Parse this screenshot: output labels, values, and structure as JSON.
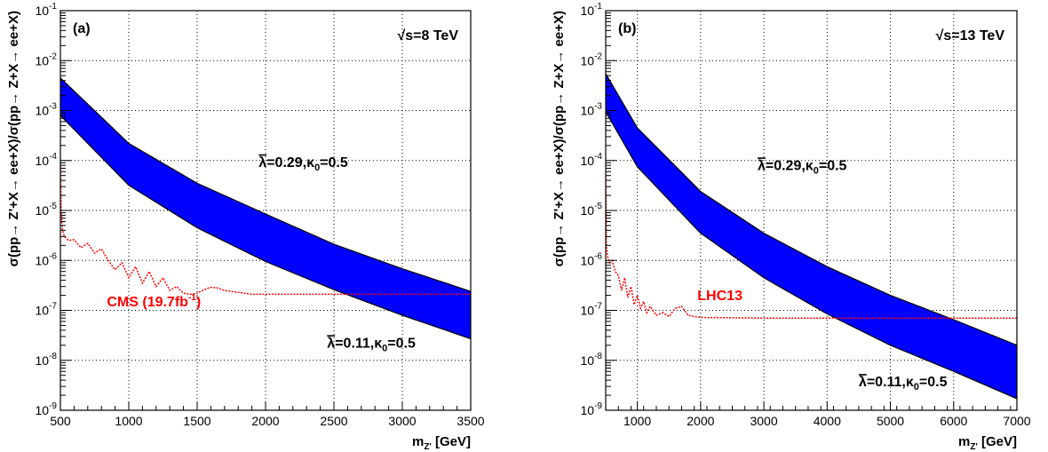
{
  "chart_data": [
    {
      "id": "a",
      "type": "area",
      "panel_label": "(a)",
      "energy_label": "√s=8 TeV",
      "xlabel_main": "m",
      "xlabel_sub": "Z'",
      "xlabel_unit": "[GeV]",
      "ylabel": "σ(pp→ Z'+X→ ee+X)/σ(pp→ Z+X→ ee+X)",
      "xlim": [
        500,
        3500
      ],
      "ylim_log10": [
        -9,
        -1
      ],
      "yscale": "log",
      "grid": true,
      "xticks": [
        500,
        1000,
        1500,
        2000,
        2500,
        3000,
        3500
      ],
      "xtick_labels": [
        "500",
        "1000",
        "1500",
        "2000",
        "2500",
        "3000",
        "3500"
      ],
      "ytick_exponents": [
        -9,
        -8,
        -7,
        -6,
        -5,
        -4,
        -3,
        -2,
        -1
      ],
      "band": {
        "color": "#0000ff",
        "x": [
          500,
          1000,
          1500,
          2000,
          2500,
          3000,
          3500
        ],
        "upper": [
          0.0045,
          0.00022,
          3.5e-05,
          8.5e-06,
          2.1e-06,
          6.8e-07,
          2.4e-07
        ],
        "lower": [
          0.0008,
          3.2e-05,
          4.5e-06,
          9.5e-07,
          2.6e-07,
          8e-08,
          2.7e-08
        ],
        "upper_label": {
          "lambda": "λ",
          "text": "=0.29,κ",
          "sub": "0",
          "tail": "=0.5",
          "x": 1950,
          "y": 7.5e-05
        },
        "lower_label": {
          "lambda": "λ",
          "text": "=0.11,κ",
          "sub": "0",
          "tail": "=0.5",
          "x": 2450,
          "y": 1.8e-08
        }
      },
      "limit": {
        "color": "#ff0000",
        "label_main": "CMS (19.7fb",
        "label_sup": "-1",
        "label_end": ")",
        "label_x": 840,
        "label_y": 1.2e-07,
        "x": [
          500,
          505,
          515,
          530,
          560,
          600,
          650,
          700,
          750,
          800,
          850,
          900,
          950,
          1000,
          1050,
          1100,
          1150,
          1200,
          1250,
          1300,
          1350,
          1400,
          1450,
          1500,
          1550,
          1600,
          1650,
          1700,
          1800,
          1900,
          2000,
          2500,
          3000,
          3500
        ],
        "y": [
          9e-05,
          1.2e-05,
          4e-06,
          3e-06,
          2.5e-06,
          2.6e-06,
          1.8e-06,
          2.2e-06,
          1.4e-06,
          1.7e-06,
          1e-06,
          6.5e-07,
          9e-07,
          4.5e-07,
          7.5e-07,
          3.5e-07,
          6e-07,
          3e-07,
          4.5e-07,
          2.5e-07,
          3e-07,
          2.2e-07,
          2.1e-07,
          2.2e-07,
          2.6e-07,
          2.9e-07,
          2.8e-07,
          2.5e-07,
          2.3e-07,
          2.1e-07,
          2.1e-07,
          2.1e-07,
          2.1e-07,
          2.1e-07
        ]
      }
    },
    {
      "id": "b",
      "type": "area",
      "panel_label": "(b)",
      "energy_label": "√s=13 TeV",
      "xlabel_main": "m",
      "xlabel_sub": "Z'",
      "xlabel_unit": "[GeV]",
      "ylabel": "σ(pp→ Z'+X→ ee+X)/σ(pp→ Z+X→ ee+X)",
      "xlim": [
        500,
        7000
      ],
      "ylim_log10": [
        -9,
        -1
      ],
      "yscale": "log",
      "grid": true,
      "xticks": [
        1000,
        2000,
        3000,
        4000,
        5000,
        6000,
        7000
      ],
      "xtick_labels": [
        "1000",
        "2000",
        "3000",
        "4000",
        "5000",
        "6000",
        "7000"
      ],
      "ytick_exponents": [
        -9,
        -8,
        -7,
        -6,
        -5,
        -4,
        -3,
        -2,
        -1
      ],
      "band": {
        "color": "#0000ff",
        "x": [
          500,
          1000,
          2000,
          3000,
          4000,
          5000,
          6000,
          7000
        ],
        "upper": [
          0.0055,
          0.00045,
          2.4e-05,
          3.5e-06,
          7.5e-07,
          2e-07,
          6.5e-08,
          2e-08
        ],
        "lower": [
          0.00095,
          7.5e-05,
          3.5e-06,
          4.5e-07,
          8.5e-08,
          2e-08,
          6e-09,
          1.7e-09
        ],
        "upper_label": {
          "lambda": "λ",
          "text": "=0.29,κ",
          "sub": "0",
          "tail": "=0.5",
          "x": 2900,
          "y": 6.5e-05
        },
        "lower_label": {
          "lambda": "λ",
          "text": "=0.11,κ",
          "sub": "0",
          "tail": "=0.5",
          "x": 4500,
          "y": 3e-09
        }
      },
      "limit": {
        "color": "#ff0000",
        "label_main": "LHC13",
        "label_sup": "",
        "label_end": "",
        "label_x": 1950,
        "label_y": 1.6e-07,
        "x": [
          500,
          510,
          530,
          560,
          600,
          650,
          700,
          750,
          800,
          850,
          900,
          950,
          1000,
          1050,
          1100,
          1150,
          1200,
          1300,
          1400,
          1500,
          1600,
          1700,
          1800,
          1900,
          2000,
          3000,
          4000,
          5000,
          6000,
          7000
        ],
        "y": [
          5e-05,
          2e-06,
          1.2e-06,
          9e-07,
          1e-06,
          6e-07,
          5e-07,
          2.5e-07,
          4.5e-07,
          1.8e-07,
          3e-07,
          1.3e-07,
          2e-07,
          1.1e-07,
          1.5e-07,
          9e-08,
          1.2e-07,
          8e-08,
          9e-08,
          7.5e-08,
          1.1e-07,
          1.2e-07,
          8e-08,
          7.5e-08,
          7.2e-08,
          7e-08,
          7e-08,
          7e-08,
          7e-08,
          7e-08
        ]
      }
    }
  ]
}
